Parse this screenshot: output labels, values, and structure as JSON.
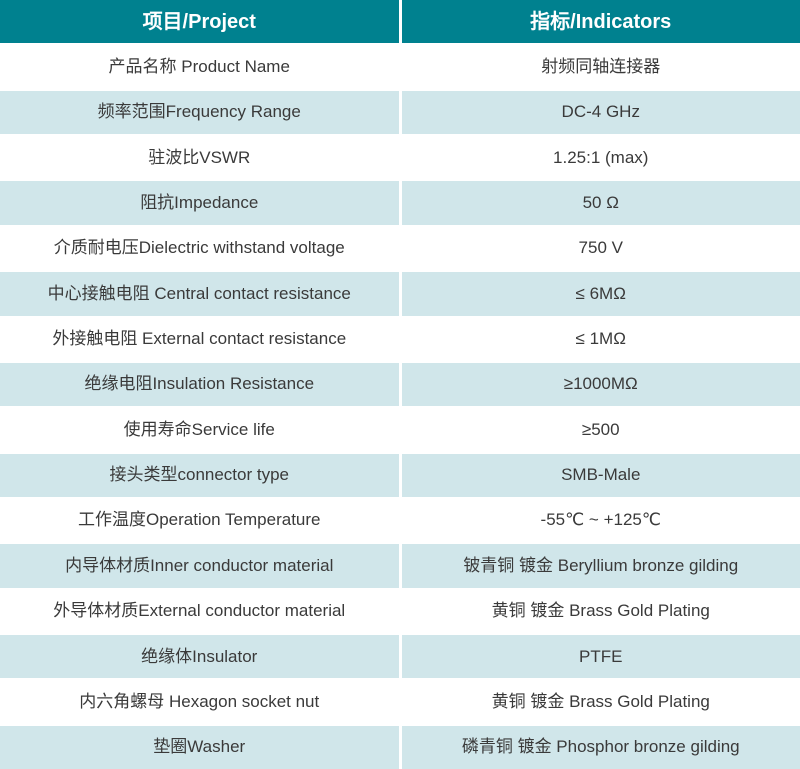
{
  "table": {
    "headers": [
      {
        "label": "项目/Project"
      },
      {
        "label": "指标/Indicators"
      }
    ],
    "rows": [
      {
        "project": "产品名称 Product Name",
        "indicator": "射频同轴连接器"
      },
      {
        "project": "频率范围Frequency Range",
        "indicator": "DC-4 GHz"
      },
      {
        "project": "驻波比VSWR",
        "indicator": "1.25:1 (max)"
      },
      {
        "project": "阻抗Impedance",
        "indicator": "50 Ω"
      },
      {
        "project": "介质耐电压Dielectric withstand voltage",
        "indicator": "750 V"
      },
      {
        "project": "中心接触电阻 Central contact resistance",
        "indicator": "≤ 6MΩ"
      },
      {
        "project": "外接触电阻 External contact resistance",
        "indicator": "≤ 1MΩ"
      },
      {
        "project": "绝缘电阻Insulation Resistance",
        "indicator": "≥1000MΩ"
      },
      {
        "project": "使用寿命Service life",
        "indicator": "≥500"
      },
      {
        "project": "接头类型connector type",
        "indicator": "SMB-Male"
      },
      {
        "project": "工作温度Operation Temperature",
        "indicator": "-55℃ ~ +125℃"
      },
      {
        "project": "内导体材质Inner conductor material",
        "indicator": "铍青铜 镀金 Beryllium bronze gilding"
      },
      {
        "project": "外导体材质External conductor material",
        "indicator": "黄铜 镀金 Brass Gold Plating"
      },
      {
        "project": "绝缘体Insulator",
        "indicator": "PTFE"
      },
      {
        "project": "内六角螺母 Hexagon socket nut",
        "indicator": "黄铜 镀金 Brass Gold Plating"
      },
      {
        "project": "垫圈Washer",
        "indicator": "磷青铜 镀金 Phosphor bronze gilding"
      }
    ],
    "colors": {
      "header_bg": "#00818f",
      "header_text": "#ffffff",
      "row_bg": "#ffffff",
      "row_alt_bg": "#d0e6ea",
      "body_text": "#3a3a3a"
    }
  }
}
